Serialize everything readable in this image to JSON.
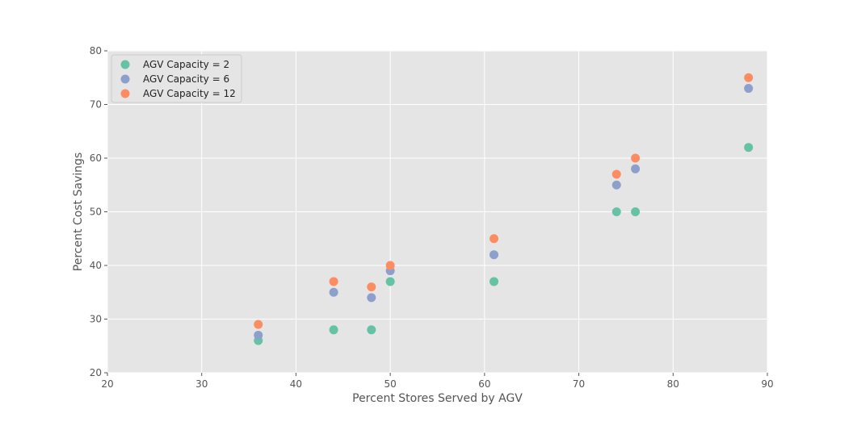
{
  "chart_data": {
    "type": "scatter",
    "title": "",
    "xlabel": "Percent Stores Served by AGV",
    "ylabel": "Percent Cost Savings",
    "xlim": [
      20,
      90
    ],
    "ylim": [
      20,
      80
    ],
    "xticks": [
      20,
      30,
      40,
      50,
      60,
      70,
      80,
      90
    ],
    "yticks": [
      20,
      30,
      40,
      50,
      60,
      70,
      80
    ],
    "grid": true,
    "legend_position": "top-left",
    "series": [
      {
        "name": "AGV Capacity = 2",
        "color": "#66c2a5",
        "points": [
          [
            36,
            26
          ],
          [
            44,
            28
          ],
          [
            48,
            28
          ],
          [
            50,
            37
          ],
          [
            61,
            37
          ],
          [
            74,
            50
          ],
          [
            76,
            50
          ],
          [
            88,
            62
          ]
        ]
      },
      {
        "name": "AGV Capacity = 6",
        "color": "#8da0cb",
        "points": [
          [
            36,
            27
          ],
          [
            44,
            35
          ],
          [
            48,
            34
          ],
          [
            50,
            39
          ],
          [
            61,
            42
          ],
          [
            74,
            55
          ],
          [
            76,
            58
          ],
          [
            88,
            73
          ]
        ]
      },
      {
        "name": "AGV Capacity = 12",
        "color": "#fc8d62",
        "points": [
          [
            36,
            29
          ],
          [
            44,
            37
          ],
          [
            48,
            36
          ],
          [
            50,
            40
          ],
          [
            61,
            45
          ],
          [
            74,
            57
          ],
          [
            76,
            60
          ],
          [
            88,
            75
          ]
        ]
      }
    ]
  }
}
